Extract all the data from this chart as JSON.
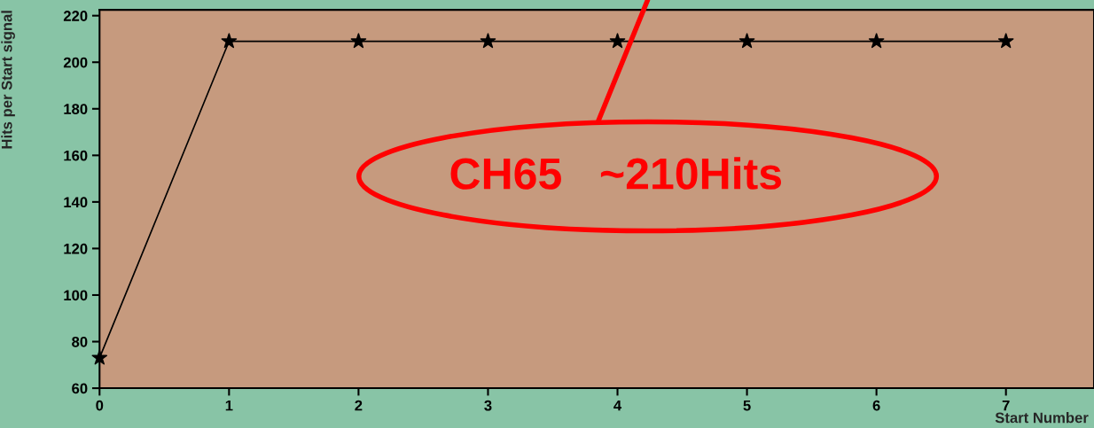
{
  "chart_data": {
    "type": "line",
    "xlabel": "Start Number",
    "ylabel": "Hits per Start signal",
    "x": [
      0,
      1,
      2,
      3,
      4,
      5,
      6,
      7
    ],
    "series": [
      {
        "color": "#000000",
        "values": [
          73,
          209,
          209,
          209,
          209,
          209,
          209,
          209
        ]
      }
    ],
    "xlim": [
      0,
      7.68
    ],
    "xticks": [
      0,
      1,
      2,
      3,
      4,
      5,
      6,
      7
    ],
    "ylim": [
      60,
      222.5
    ],
    "yticks": [
      60,
      80,
      100,
      120,
      140,
      160,
      180,
      200,
      220
    ],
    "marker": "star",
    "line_style": "solid",
    "grid": false,
    "legend": false,
    "annotations": [
      "CH65   ~210Hits"
    ]
  }
}
